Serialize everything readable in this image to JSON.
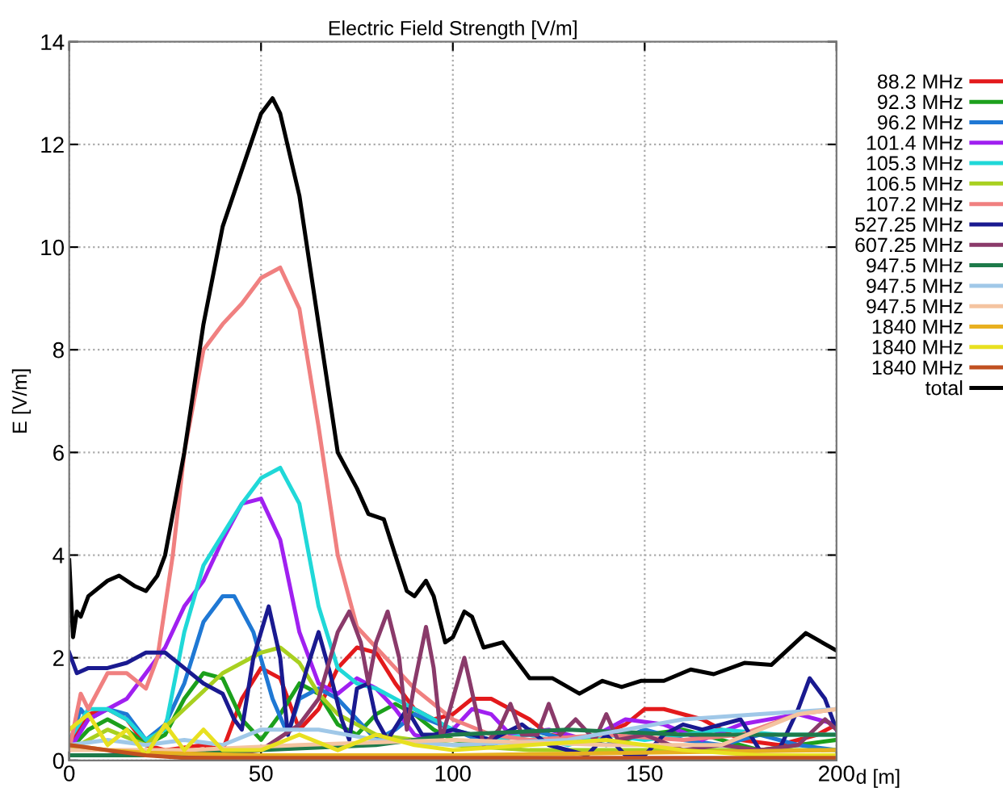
{
  "chart_data": {
    "type": "line",
    "title": "Electric Field Strength [V/m]",
    "xlabel": "d [m]",
    "ylabel": "E [V/m]",
    "xlim": [
      0,
      200
    ],
    "ylim": [
      0,
      14
    ],
    "xticks": [
      0,
      50,
      100,
      150,
      200
    ],
    "yticks": [
      0,
      2,
      4,
      6,
      8,
      10,
      12,
      14
    ],
    "grid": true,
    "legend": "top right",
    "line_style": "solid",
    "marker": "none",
    "series": [
      {
        "name": "88.2 MHz",
        "color": "#e31a1c",
        "x": [
          0,
          5,
          10,
          15,
          20,
          25,
          35,
          40,
          45,
          50,
          55,
          60,
          65,
          70,
          75,
          80,
          85,
          90,
          95,
          100,
          105,
          110,
          120,
          125,
          135,
          145,
          150,
          155,
          165,
          175,
          185,
          195,
          200
        ],
        "values": [
          0.3,
          0.9,
          1.0,
          0.8,
          0.3,
          0.2,
          0.3,
          0.2,
          1.2,
          1.8,
          1.6,
          0.6,
          1.0,
          1.8,
          2.2,
          2.1,
          1.5,
          1.0,
          0.8,
          0.9,
          1.2,
          1.2,
          0.8,
          0.5,
          0.4,
          0.7,
          1.0,
          1.0,
          0.8,
          0.4,
          0.3,
          0.5,
          0.7
        ]
      },
      {
        "name": "92.3 MHz",
        "color": "#1ca01c",
        "x": [
          0,
          5,
          10,
          15,
          20,
          25,
          30,
          35,
          40,
          45,
          50,
          55,
          60,
          65,
          70,
          75,
          80,
          85,
          90,
          95,
          100,
          110,
          120,
          130,
          140,
          150,
          160,
          170,
          180,
          190,
          200
        ],
        "values": [
          0.2,
          0.6,
          0.8,
          0.6,
          0.3,
          0.5,
          1.2,
          1.7,
          1.6,
          0.8,
          0.4,
          0.9,
          1.5,
          1.3,
          0.7,
          0.5,
          0.9,
          1.1,
          0.9,
          0.6,
          0.4,
          0.3,
          0.6,
          0.4,
          0.3,
          0.5,
          0.6,
          0.4,
          0.2,
          0.3,
          0.4
        ]
      },
      {
        "name": "96.2 MHz",
        "color": "#1f78d4",
        "x": [
          0,
          3,
          5,
          10,
          15,
          20,
          25,
          30,
          35,
          40,
          43,
          48,
          53,
          57,
          60,
          65,
          70,
          75,
          80,
          85,
          90,
          100,
          110,
          120,
          130,
          140,
          150,
          160,
          170,
          180,
          190,
          200
        ],
        "values": [
          0.3,
          1.0,
          0.8,
          1.0,
          0.9,
          0.4,
          0.7,
          1.5,
          2.7,
          3.2,
          3.2,
          2.5,
          1.2,
          0.5,
          1.2,
          1.4,
          1.2,
          0.8,
          0.4,
          0.6,
          0.9,
          0.6,
          0.3,
          0.6,
          0.4,
          0.3,
          0.6,
          0.4,
          0.3,
          0.5,
          0.3,
          0.2
        ]
      },
      {
        "name": "101.4 MHz",
        "color": "#a020f0",
        "x": [
          0,
          5,
          10,
          15,
          20,
          25,
          30,
          35,
          40,
          45,
          50,
          55,
          60,
          65,
          70,
          75,
          80,
          85,
          90,
          95,
          100,
          105,
          110,
          115,
          125,
          135,
          145,
          155,
          165,
          175,
          190,
          200
        ],
        "values": [
          0.2,
          0.8,
          1.0,
          1.2,
          1.7,
          2.2,
          3.0,
          3.5,
          4.3,
          5.0,
          5.1,
          4.3,
          2.5,
          1.5,
          1.3,
          1.6,
          1.4,
          1.0,
          0.5,
          0.4,
          0.6,
          1.0,
          0.9,
          0.5,
          0.6,
          0.4,
          0.8,
          0.7,
          0.4,
          0.7,
          0.9,
          0.7
        ]
      },
      {
        "name": "105.3 MHz",
        "color": "#20d8d8",
        "x": [
          0,
          5,
          10,
          15,
          20,
          25,
          30,
          35,
          40,
          45,
          50,
          55,
          60,
          65,
          70,
          75,
          80,
          90,
          100,
          110,
          120,
          130,
          140,
          150,
          170,
          185,
          200
        ],
        "values": [
          0.4,
          1.0,
          1.0,
          0.8,
          0.4,
          0.6,
          2.5,
          3.8,
          4.4,
          5.0,
          5.5,
          5.7,
          5.0,
          3.0,
          1.8,
          1.5,
          1.4,
          1.0,
          0.6,
          0.4,
          0.5,
          0.3,
          0.5,
          0.4,
          0.6,
          0.5,
          0.5
        ]
      },
      {
        "name": "106.5 MHz",
        "color": "#a8d020",
        "x": [
          0,
          10,
          20,
          30,
          40,
          50,
          55,
          60,
          65,
          70,
          80,
          90,
          100,
          120,
          150,
          200
        ],
        "values": [
          0.2,
          0.6,
          0.3,
          1.0,
          1.7,
          2.1,
          2.2,
          1.9,
          1.3,
          0.9,
          0.5,
          0.4,
          0.3,
          0.2,
          0.2,
          0.2
        ]
      },
      {
        "name": "107.2 MHz",
        "color": "#f08080",
        "x": [
          0,
          3,
          5,
          10,
          15,
          20,
          23,
          27,
          30,
          35,
          40,
          45,
          50,
          55,
          60,
          65,
          70,
          75,
          80,
          85,
          90,
          100,
          110,
          120,
          140,
          160,
          175,
          190,
          200
        ],
        "values": [
          0.2,
          1.3,
          1.0,
          1.7,
          1.7,
          1.4,
          2.0,
          4.0,
          6.0,
          8.0,
          8.5,
          8.9,
          9.4,
          9.6,
          8.8,
          6.5,
          4.0,
          2.6,
          2.2,
          1.8,
          1.4,
          0.8,
          0.5,
          0.4,
          0.5,
          0.4,
          0.5,
          0.9,
          1.0
        ]
      },
      {
        "name": "527.25 MHz",
        "color": "#1a1a90",
        "x": [
          0,
          2,
          5,
          10,
          15,
          20,
          25,
          30,
          35,
          40,
          43,
          45,
          48,
          52,
          55,
          57,
          62,
          65,
          68,
          71,
          73,
          75,
          78,
          80,
          83,
          88,
          92,
          95,
          100,
          110,
          118,
          125,
          135,
          140,
          145,
          150,
          155,
          160,
          165,
          170,
          175,
          180,
          185,
          190,
          193,
          197,
          200
        ],
        "values": [
          2.1,
          1.7,
          1.8,
          1.8,
          1.9,
          2.1,
          2.1,
          1.8,
          1.5,
          1.3,
          0.8,
          0.6,
          2.0,
          3.0,
          2.0,
          0.5,
          1.8,
          2.5,
          1.7,
          0.8,
          0.4,
          1.4,
          1.5,
          0.8,
          0.4,
          1.0,
          0.5,
          0.5,
          0.6,
          0.4,
          0.7,
          0.3,
          0.1,
          0.5,
          0.1,
          0.1,
          0.5,
          0.7,
          0.6,
          0.7,
          0.8,
          0.2,
          0.2,
          1.0,
          1.6,
          1.2,
          0.6
        ]
      },
      {
        "name": "607.25 MHz",
        "color": "#8a3a6a",
        "x": [
          0,
          10,
          20,
          30,
          40,
          50,
          60,
          65,
          70,
          73,
          76,
          78,
          80,
          83,
          86,
          88,
          90,
          93,
          95,
          97,
          100,
          103,
          106,
          108,
          112,
          115,
          118,
          122,
          125,
          128,
          132,
          137,
          140,
          143,
          150,
          160,
          170,
          180,
          190,
          197,
          200
        ],
        "values": [
          0.1,
          0.1,
          0.2,
          0.1,
          0.1,
          0.2,
          0.7,
          1.2,
          2.5,
          2.9,
          2.3,
          1.5,
          2.3,
          2.9,
          2.0,
          0.6,
          1.5,
          2.6,
          1.8,
          0.4,
          1.2,
          2.0,
          1.0,
          0.3,
          0.6,
          1.1,
          0.5,
          0.5,
          1.1,
          0.5,
          0.8,
          0.4,
          0.9,
          0.4,
          0.5,
          0.2,
          0.3,
          0.2,
          0.3,
          0.8,
          0.6
        ]
      },
      {
        "name": "947.5 MHz",
        "color": "#1e7a4a",
        "x": [
          0,
          20,
          50,
          80,
          100,
          130,
          160,
          200
        ],
        "values": [
          0.1,
          0.1,
          0.2,
          0.3,
          0.5,
          0.6,
          0.5,
          0.5
        ]
      },
      {
        "name": "947.5 MHz",
        "color": "#a0c8e8",
        "x": [
          0,
          10,
          20,
          30,
          40,
          50,
          55,
          65,
          80,
          100,
          130,
          160,
          180,
          200
        ],
        "values": [
          0.3,
          0.4,
          0.3,
          0.4,
          0.3,
          0.6,
          0.6,
          0.6,
          0.4,
          0.3,
          0.4,
          0.8,
          0.9,
          1.0
        ]
      },
      {
        "name": "947.5 MHz",
        "color": "#f4c4a0",
        "x": [
          0,
          30,
          60,
          100,
          140,
          170,
          190,
          200
        ],
        "values": [
          0.2,
          0.2,
          0.3,
          0.4,
          0.3,
          0.3,
          0.9,
          1.0
        ]
      },
      {
        "name": "1840 MHz",
        "color": "#e8b020",
        "x": [
          0,
          10,
          20,
          50,
          100,
          150,
          200
        ],
        "values": [
          0.3,
          0.2,
          0.15,
          0.1,
          0.1,
          0.15,
          0.2
        ]
      },
      {
        "name": "1840 MHz",
        "color": "#e8e020",
        "x": [
          0,
          5,
          10,
          15,
          20,
          25,
          30,
          35,
          40,
          50,
          60,
          70,
          80,
          90,
          100,
          120,
          140,
          160,
          180,
          200
        ],
        "values": [
          0.6,
          0.9,
          0.3,
          0.6,
          0.1,
          0.7,
          0.2,
          0.6,
          0.2,
          0.2,
          0.5,
          0.2,
          0.5,
          0.3,
          0.2,
          0.3,
          0.4,
          0.2,
          0.1,
          0.1
        ]
      },
      {
        "name": "1840 MHz",
        "color": "#c05020",
        "x": [
          0,
          10,
          20,
          30,
          60,
          100,
          150,
          200
        ],
        "values": [
          0.3,
          0.2,
          0.1,
          0.05,
          0.05,
          0.05,
          0.05,
          0.05
        ]
      },
      {
        "name": "total",
        "color": "#000000",
        "x": [
          0,
          1,
          2,
          3,
          5,
          10,
          13,
          17,
          20,
          23,
          25,
          30,
          35,
          40,
          45,
          50,
          53,
          55,
          60,
          65,
          70,
          75,
          78,
          82,
          85,
          88,
          90,
          93,
          95,
          98,
          100,
          103,
          105,
          108,
          113,
          120,
          126,
          133,
          139,
          144,
          149,
          155,
          162,
          168,
          176,
          183,
          192,
          200
        ],
        "values": [
          3.9,
          2.4,
          2.9,
          2.8,
          3.2,
          3.5,
          3.6,
          3.4,
          3.3,
          3.6,
          4.0,
          6.0,
          8.5,
          10.4,
          11.5,
          12.6,
          12.9,
          12.6,
          11.0,
          8.5,
          6.0,
          5.3,
          4.8,
          4.7,
          4.0,
          3.3,
          3.2,
          3.5,
          3.2,
          2.3,
          2.4,
          2.9,
          2.8,
          2.2,
          2.3,
          1.6,
          1.6,
          1.3,
          1.55,
          1.43,
          1.55,
          1.55,
          1.77,
          1.68,
          1.9,
          1.86,
          2.48,
          2.14
        ]
      }
    ]
  }
}
